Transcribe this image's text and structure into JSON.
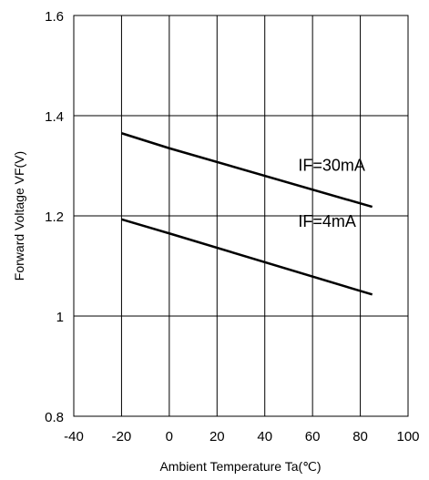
{
  "chart_data": {
    "type": "line",
    "title": "",
    "xlabel": "Ambient Temperature Ta(℃)",
    "ylabel": "Forward Voltage VF(V)",
    "xlim": [
      -40,
      100
    ],
    "ylim": [
      0.8,
      1.6
    ],
    "x_ticks": [
      "-40",
      "-20",
      "0",
      "20",
      "40",
      "60",
      "80",
      "100"
    ],
    "y_ticks": [
      "0.8",
      "1",
      "1.2",
      "1.4",
      "1.6"
    ],
    "grid": true,
    "series": [
      {
        "name": "IF=30mA",
        "x": [
          -20,
          0,
          85
        ],
        "y": [
          1.365,
          1.335,
          1.218
        ]
      },
      {
        "name": "IF=4mA",
        "x": [
          -20,
          0,
          85
        ],
        "y": [
          1.193,
          1.165,
          1.043
        ]
      }
    ],
    "annotations": [
      {
        "text": "IF=30mA",
        "x": 54.0,
        "y": 1.29
      },
      {
        "text": "IF=4mA",
        "x": 54.0,
        "y": 1.178
      }
    ],
    "colors": {
      "line": "#000000",
      "grid": "#000000",
      "background": "#ffffff"
    }
  }
}
